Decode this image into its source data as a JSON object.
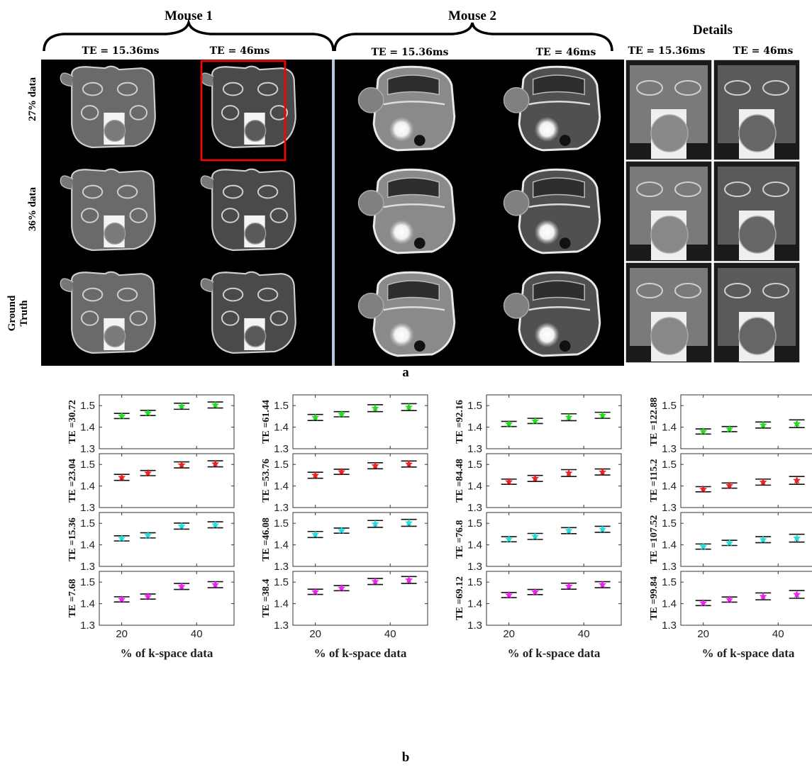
{
  "panel_a": {
    "groups": [
      {
        "title": "Mouse 1",
        "te_labels": [
          "TE = 15.36ms",
          "TE = 46ms"
        ]
      },
      {
        "title": "Mouse 2",
        "te_labels": [
          "TE = 15.36ms",
          "TE = 46ms"
        ]
      },
      {
        "title": "Details",
        "te_labels": [
          "TE = 15.36ms",
          "TE = 46ms"
        ]
      }
    ],
    "row_labels": [
      "27% data",
      "36% data",
      "Ground Truth"
    ],
    "label": "a"
  },
  "panel_b_label": "b",
  "colors": {
    "green": "#22dd22",
    "red": "#ee2222",
    "cyan": "#22dddd",
    "magenta": "#ee22ee",
    "roi_box": "#ff0000"
  },
  "chart_data": {
    "type": "scatter",
    "errorbars": true,
    "x": [
      20,
      27,
      36,
      45
    ],
    "xticks": [
      20,
      40
    ],
    "xlim": [
      14,
      50
    ],
    "ylim": [
      1.3,
      1.55
    ],
    "yticks": [
      1.3,
      1.4,
      1.5
    ],
    "xlabel": "% of k-space data",
    "panels": [
      {
        "ylabel": "TE =30.72",
        "color": "green",
        "y": [
          1.452,
          1.466,
          1.497,
          1.503
        ],
        "err": [
          0.012,
          0.012,
          0.014,
          0.014
        ]
      },
      {
        "ylabel": "TE =61.44",
        "color": "green",
        "y": [
          1.445,
          1.46,
          1.488,
          1.493
        ],
        "err": [
          0.014,
          0.012,
          0.016,
          0.016
        ]
      },
      {
        "ylabel": "TE =92.16",
        "color": "green",
        "y": [
          1.415,
          1.429,
          1.446,
          1.455
        ],
        "err": [
          0.012,
          0.012,
          0.016,
          0.014
        ]
      },
      {
        "ylabel": "TE =122.88",
        "color": "green",
        "y": [
          1.38,
          1.391,
          1.41,
          1.416
        ],
        "err": [
          0.012,
          0.012,
          0.014,
          0.018
        ]
      },
      {
        "ylabel": "TE =23.04",
        "color": "red",
        "y": [
          1.44,
          1.46,
          1.498,
          1.503
        ],
        "err": [
          0.014,
          0.012,
          0.014,
          0.014
        ]
      },
      {
        "ylabel": "TE =53.76",
        "color": "red",
        "y": [
          1.45,
          1.466,
          1.494,
          1.502
        ],
        "err": [
          0.014,
          0.012,
          0.014,
          0.014
        ]
      },
      {
        "ylabel": "TE =84.48",
        "color": "red",
        "y": [
          1.42,
          1.435,
          1.46,
          1.465
        ],
        "err": [
          0.012,
          0.014,
          0.016,
          0.014
        ]
      },
      {
        "ylabel": "TE =115.2",
        "color": "red",
        "y": [
          1.385,
          1.402,
          1.418,
          1.426
        ],
        "err": [
          0.012,
          0.012,
          0.014,
          0.018
        ]
      },
      {
        "ylabel": "TE =15.36",
        "color": "cyan",
        "y": [
          1.43,
          1.444,
          1.487,
          1.493
        ],
        "err": [
          0.012,
          0.012,
          0.014,
          0.014
        ]
      },
      {
        "ylabel": "TE =46.08",
        "color": "cyan",
        "y": [
          1.448,
          1.466,
          1.497,
          1.502
        ],
        "err": [
          0.014,
          0.012,
          0.016,
          0.016
        ]
      },
      {
        "ylabel": "TE =76.8",
        "color": "cyan",
        "y": [
          1.426,
          1.439,
          1.466,
          1.472
        ],
        "err": [
          0.012,
          0.014,
          0.014,
          0.014
        ]
      },
      {
        "ylabel": "TE =107.52",
        "color": "cyan",
        "y": [
          1.392,
          1.409,
          1.424,
          1.431
        ],
        "err": [
          0.012,
          0.012,
          0.014,
          0.018
        ]
      },
      {
        "ylabel": "TE =7.68",
        "color": "magenta",
        "y": [
          1.42,
          1.433,
          1.48,
          1.488
        ],
        "err": [
          0.012,
          0.012,
          0.014,
          0.014
        ]
      },
      {
        "ylabel": "TE =38.4",
        "color": "magenta",
        "y": [
          1.455,
          1.472,
          1.503,
          1.51
        ],
        "err": [
          0.012,
          0.012,
          0.014,
          0.016
        ]
      },
      {
        "ylabel": "TE =69.12",
        "color": "magenta",
        "y": [
          1.44,
          1.454,
          1.481,
          1.488
        ],
        "err": [
          0.012,
          0.012,
          0.014,
          0.014
        ]
      },
      {
        "ylabel": "TE =99.84",
        "color": "magenta",
        "y": [
          1.403,
          1.419,
          1.434,
          1.443
        ],
        "err": [
          0.012,
          0.012,
          0.016,
          0.018
        ]
      }
    ]
  }
}
